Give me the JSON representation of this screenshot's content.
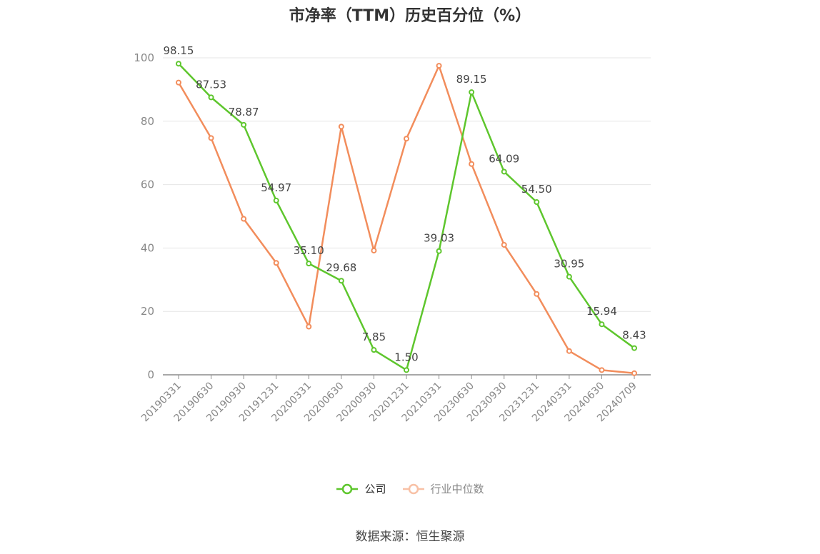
{
  "chart_data": {
    "type": "line",
    "title": "市净率（TTM）历史百分位（%）",
    "categories": [
      "20190331",
      "20190630",
      "20190930",
      "20191231",
      "20200331",
      "20200630",
      "20200930",
      "20201231",
      "20210331",
      "20230630",
      "20230930",
      "20231231",
      "20240331",
      "20240630",
      "20240709"
    ],
    "ylim": [
      0,
      100
    ],
    "yticks": [
      0,
      20,
      40,
      60,
      80,
      100
    ],
    "grid": true,
    "legend_position": "bottom-center",
    "series": [
      {
        "name": "公司",
        "color": "#5ec62d",
        "values": [
          98.15,
          87.53,
          78.87,
          54.97,
          35.1,
          29.68,
          7.85,
          1.5,
          39.03,
          89.15,
          64.09,
          54.5,
          30.95,
          15.94,
          8.43
        ],
        "labels": [
          "98.15",
          "87.53",
          "78.87",
          "54.97",
          "35.10",
          "29.68",
          "7.85",
          "1.50",
          "39.03",
          "89.15",
          "64.09",
          "54.50",
          "30.95",
          "15.94",
          "8.43"
        ]
      },
      {
        "name": "行业中位数",
        "color": "#f28d5c",
        "values": [
          92.2,
          74.7,
          49.2,
          35.3,
          15.2,
          78.3,
          39.2,
          74.5,
          97.5,
          66.5,
          41.0,
          25.5,
          7.5,
          1.5,
          0.5
        ]
      }
    ]
  },
  "legend": {
    "company": "公司",
    "industry": "行业中位数"
  },
  "source": "数据来源：恒生聚源"
}
